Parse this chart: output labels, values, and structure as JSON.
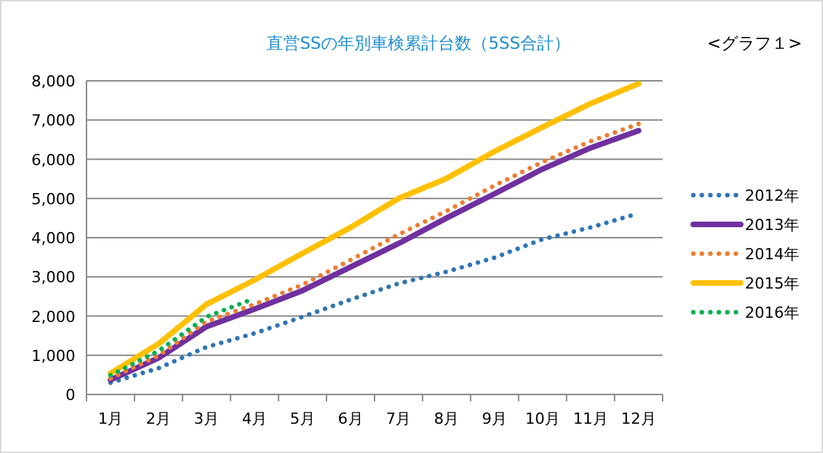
{
  "chart_data": {
    "type": "line",
    "title": "直営SSの年別車検累計台数（5SS合計）",
    "annotations": [
      "<グラフ１>"
    ],
    "categories": [
      "1月",
      "2月",
      "3月",
      "4月",
      "5月",
      "6月",
      "7月",
      "8月",
      "9月",
      "10月",
      "11月",
      "12月"
    ],
    "series": [
      {
        "name": "2012年",
        "color": "#2e75b6",
        "line_style": "dotted",
        "values": [
          300,
          670,
          1210,
          1560,
          1980,
          2420,
          2830,
          3130,
          3490,
          3960,
          4260,
          4620
        ]
      },
      {
        "name": "2013年",
        "color": "#7030a0",
        "line_style": "solid",
        "values": [
          370,
          930,
          1730,
          2180,
          2650,
          3250,
          3850,
          4500,
          5120,
          5750,
          6290,
          6730
        ]
      },
      {
        "name": "2014年",
        "color": "#ed7d31",
        "line_style": "dotted",
        "values": [
          410,
          990,
          1860,
          2300,
          2800,
          3430,
          4080,
          4680,
          5330,
          5930,
          6460,
          6900
        ]
      },
      {
        "name": "2015年",
        "color": "#ffc000",
        "line_style": "solid",
        "values": [
          540,
          1290,
          2300,
          2920,
          3600,
          4260,
          5000,
          5510,
          6200,
          6820,
          7420,
          7930
        ]
      },
      {
        "name": "2016年",
        "color": "#00b050",
        "line_style": "dotted",
        "values": [
          490,
          1110,
          1980,
          2450,
          null,
          null,
          null,
          null,
          null,
          null,
          null,
          null
        ]
      }
    ],
    "ylim": [
      0,
      8000
    ],
    "yticks": [
      0,
      {
        "value": 1000,
        "label": "1,000"
      },
      {
        "value": 2000,
        "label": "2,000"
      },
      {
        "value": 3000,
        "label": "3,000"
      },
      {
        "value": 4000,
        "label": "4,000"
      },
      {
        "value": 5000,
        "label": "5,000"
      },
      {
        "value": 6000,
        "label": "6,000"
      },
      {
        "value": 7000,
        "label": "7,000"
      },
      {
        "value": 8000,
        "label": "8,000"
      }
    ],
    "grid": "y",
    "legend": "right",
    "marker": "none"
  }
}
